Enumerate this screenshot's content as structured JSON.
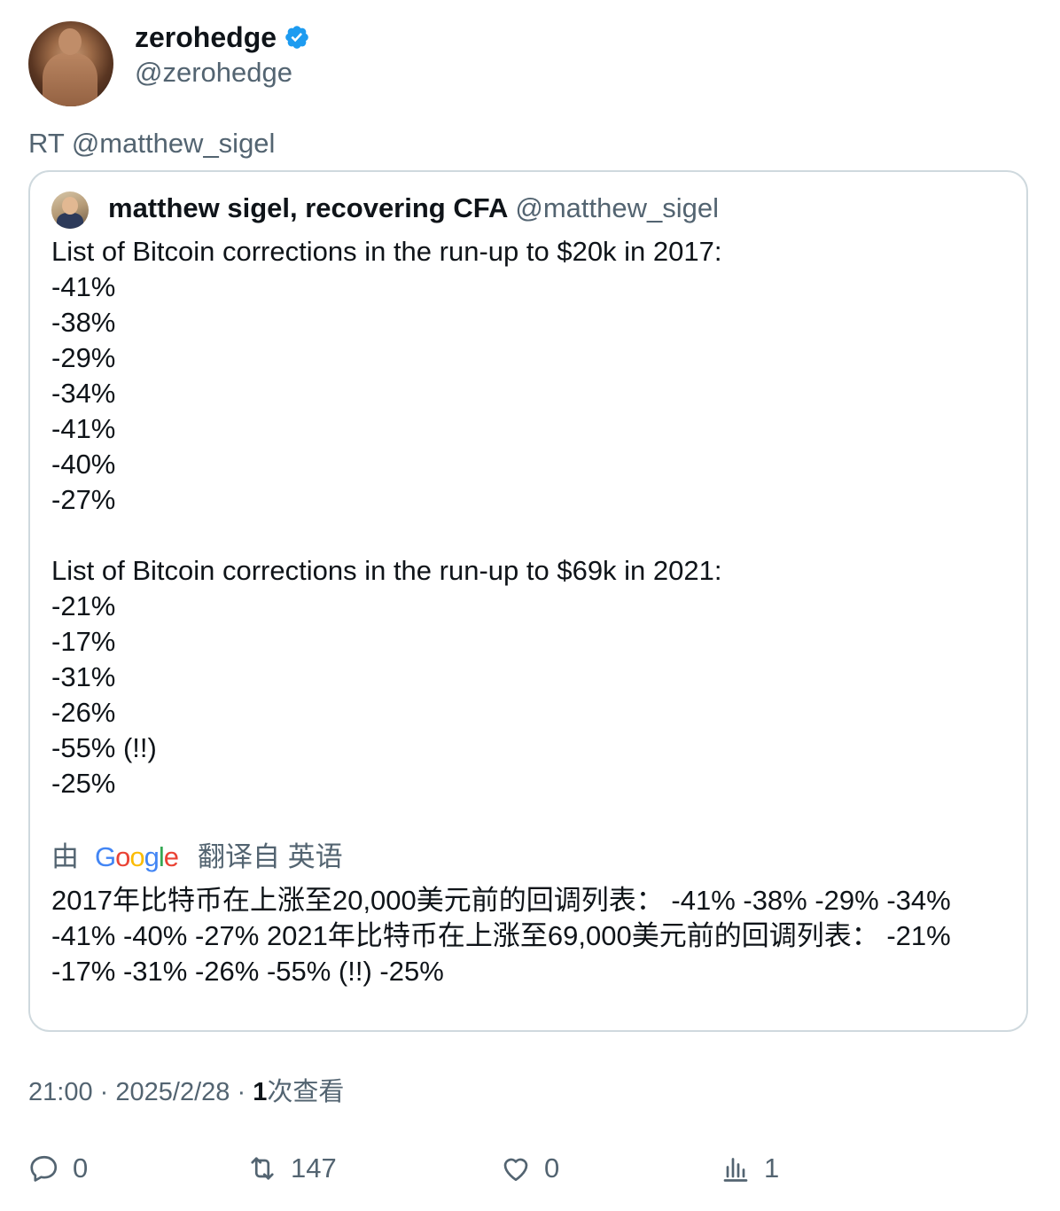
{
  "tweet": {
    "author": {
      "display_name": "zerohedge",
      "handle": "@zerohedge",
      "verified_color": "#1d9bf0"
    },
    "retweet_line": "RT @matthew_sigel",
    "quoted": {
      "display_name": "matthew sigel, recovering CFA",
      "handle": "@matthew_sigel",
      "body_lines": [
        "List of Bitcoin corrections in the run-up to $20k in 2017:",
        "-41%",
        "-38%",
        "-29%",
        "-34%",
        "-41%",
        "-40%",
        "-27%",
        "",
        "List of Bitcoin corrections in the run-up to $69k in 2021:",
        "-21%",
        "-17%",
        "-31%",
        "-26%",
        "-55% (!!)",
        "-25%"
      ],
      "translation": {
        "prefix": "由",
        "google": [
          "G",
          "o",
          "o",
          "g",
          "l",
          "e"
        ],
        "suffix": "翻译自 英语",
        "text": "2017年比特币在上涨至20,000美元前的回调列表： -41% -38% -29% -34% -41% -40% -27% 2021年比特币在上涨至69,000美元前的回调列表： -21% -17% -31% -26% -55% (!!) -25%"
      }
    },
    "meta": {
      "time": "21:00",
      "date": "2025/2/28",
      "views_count": "1",
      "views_label": "次查看",
      "separator": "·"
    },
    "actions": {
      "replies": "0",
      "retweets": "147",
      "likes": "0",
      "views": "1"
    }
  }
}
